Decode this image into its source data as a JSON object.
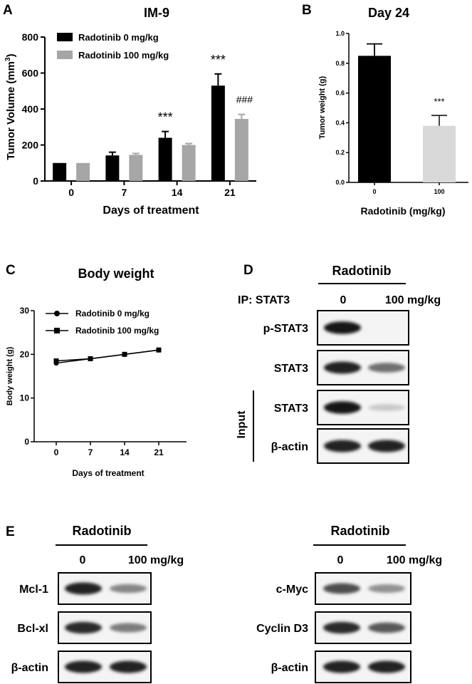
{
  "panels": {
    "A": {
      "letter": "A",
      "chart_data": {
        "type": "bar",
        "title": "IM-9",
        "xlabel": "Days of treatment",
        "ylabel": "Tumor Volume (mm",
        "ylabel_sup": "3",
        "ylabel_end": ")",
        "categories": [
          "0",
          "7",
          "14",
          "21"
        ],
        "ylim": [
          0,
          800
        ],
        "yticks": [
          "0",
          "200",
          "400",
          "600",
          "800"
        ],
        "ytick_values": [
          0,
          200,
          400,
          600,
          800
        ],
        "legend_position": "top-left",
        "series": [
          {
            "name": "Radotinib 0 mg/kg",
            "color": "#000000",
            "values": [
              100,
              142,
              240,
              530
            ],
            "errors": [
              0,
              18,
              35,
              65
            ]
          },
          {
            "name": "Radotinib 100 mg/kg",
            "color": "#a6a6a6",
            "values": [
              100,
              145,
              200,
              345
            ],
            "errors": [
              0,
              8,
              8,
              25
            ]
          }
        ],
        "annotations": [
          {
            "text": "***",
            "category_index": 2,
            "series": 0,
            "offset": 24
          },
          {
            "text": "***",
            "category_index": 3,
            "series": 0,
            "offset": 24
          },
          {
            "text": "###",
            "category_index": 3,
            "series": 1,
            "offset": 26
          }
        ]
      }
    },
    "B": {
      "letter": "B",
      "chart_data": {
        "type": "bar",
        "title": "Day 24",
        "xlabel": "Radotinib (mg/kg)",
        "ylabel": "Tumor weight (g)",
        "categories": [
          "0",
          "100"
        ],
        "ylim": [
          0,
          1.0
        ],
        "yticks": [
          "0.0",
          "0.2",
          "0.4",
          "0.6",
          "0.8",
          "1.0"
        ],
        "ytick_values": [
          0,
          0.2,
          0.4,
          0.6,
          0.8,
          1.0
        ],
        "values": [
          0.85,
          0.38
        ],
        "errors": [
          0.08,
          0.07
        ],
        "colors": [
          "#000000",
          "#d9d9d9"
        ],
        "annotations": [
          {
            "text": "***",
            "category_index": 1
          }
        ]
      }
    },
    "C": {
      "letter": "C",
      "chart_data": {
        "type": "line",
        "title": "Body weight",
        "xlabel": "Days of treatment",
        "ylabel": "Body weight (g)",
        "x": [
          "0",
          "7",
          "14",
          "21"
        ],
        "x_values": [
          0,
          7,
          14,
          21
        ],
        "ylim": [
          0,
          30
        ],
        "yticks": [
          "0",
          "10",
          "20",
          "30"
        ],
        "ytick_values": [
          0,
          10,
          20,
          30
        ],
        "legend_position": "top-left",
        "series": [
          {
            "name": "Radotinib 0 mg/kg",
            "marker": "circle",
            "values": [
              18.0,
              19.0,
              20.0,
              21.0
            ]
          },
          {
            "name": "Radotinib 100 mg/kg",
            "marker": "square",
            "values": [
              18.5,
              19.0,
              20.0,
              21.0
            ]
          }
        ]
      }
    },
    "D": {
      "letter": "D",
      "treatment": "Radotinib",
      "ip_label": "IP: STAT3",
      "dose_0": "0",
      "dose_100": "100 mg/kg",
      "input_label": "Input",
      "rows": [
        {
          "label": "p-STAT3",
          "lane1": 0.95,
          "lane2": 0.05
        },
        {
          "label": "STAT3",
          "lane1": 0.9,
          "lane2": 0.55
        },
        {
          "label": "STAT3",
          "lane1": 0.95,
          "lane2": 0.15
        },
        {
          "label": "β-actin",
          "lane1": 0.9,
          "lane2": 0.9
        }
      ]
    },
    "E": {
      "letter": "E",
      "left": {
        "treatment": "Radotinib",
        "dose_0": "0",
        "dose_100": "100 mg/kg",
        "rows": [
          {
            "label": "Mcl-1",
            "lane1": 0.9,
            "lane2": 0.45
          },
          {
            "label": "Bcl-xl",
            "lane1": 0.85,
            "lane2": 0.5
          },
          {
            "label": "β-actin",
            "lane1": 0.9,
            "lane2": 0.9
          }
        ]
      },
      "right": {
        "treatment": "Radotinib",
        "dose_0": "0",
        "dose_100": "100 mg/kg",
        "rows": [
          {
            "label": "c-Myc",
            "lane1": 0.7,
            "lane2": 0.4
          },
          {
            "label": "Cyclin D3",
            "lane1": 0.85,
            "lane2": 0.65
          },
          {
            "label": "β-actin",
            "lane1": 0.9,
            "lane2": 0.9
          }
        ]
      }
    }
  }
}
